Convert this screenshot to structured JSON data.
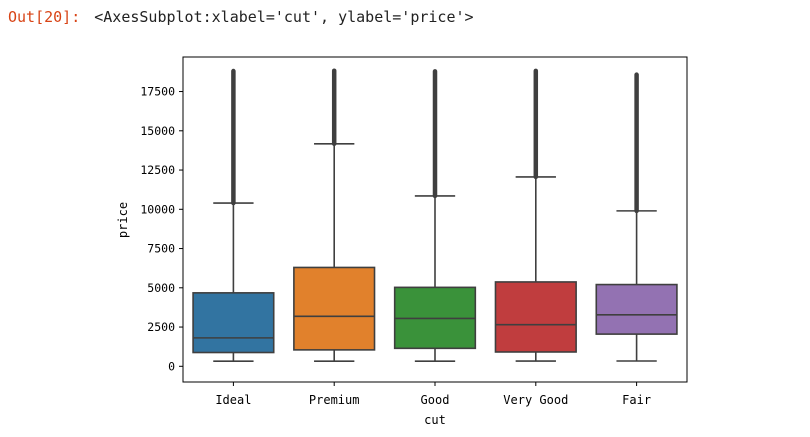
{
  "output": {
    "prompt": "Out[20]:",
    "text": "<AxesSubplot:xlabel='cut', ylabel='price'>"
  },
  "chart_data": {
    "type": "box",
    "xlabel": "cut",
    "ylabel": "price",
    "ylim": [
      -1000,
      19700
    ],
    "yticks": [
      0,
      2500,
      5000,
      7500,
      10000,
      12500,
      15000,
      17500
    ],
    "ytick_labels": [
      "0",
      "2500",
      "5000",
      "7500",
      "10000",
      "12500",
      "15000",
      "17500"
    ],
    "grid": false,
    "categories": [
      "Ideal",
      "Premium",
      "Good",
      "Very Good",
      "Fair"
    ],
    "colors": [
      "#3274a1",
      "#e1812c",
      "#3a923a",
      "#c03d3e",
      "#9372b2"
    ],
    "boxes": [
      {
        "min": 326,
        "q1": 878,
        "median": 1810,
        "q3": 4678,
        "whisker_high": 10400,
        "outliers_range": [
          10400,
          18806
        ]
      },
      {
        "min": 326,
        "q1": 1046,
        "median": 3185,
        "q3": 6296,
        "whisker_high": 14170,
        "outliers_range": [
          14170,
          18823
        ]
      },
      {
        "min": 327,
        "q1": 1145,
        "median": 3050,
        "q3": 5028,
        "whisker_high": 10850,
        "outliers_range": [
          10850,
          18788
        ]
      },
      {
        "min": 336,
        "q1": 912,
        "median": 2648,
        "q3": 5373,
        "whisker_high": 12060,
        "outliers_range": [
          12060,
          18818
        ]
      },
      {
        "min": 337,
        "q1": 2050,
        "median": 3282,
        "q3": 5206,
        "whisker_high": 9900,
        "outliers_range": [
          9900,
          18574
        ]
      }
    ]
  }
}
